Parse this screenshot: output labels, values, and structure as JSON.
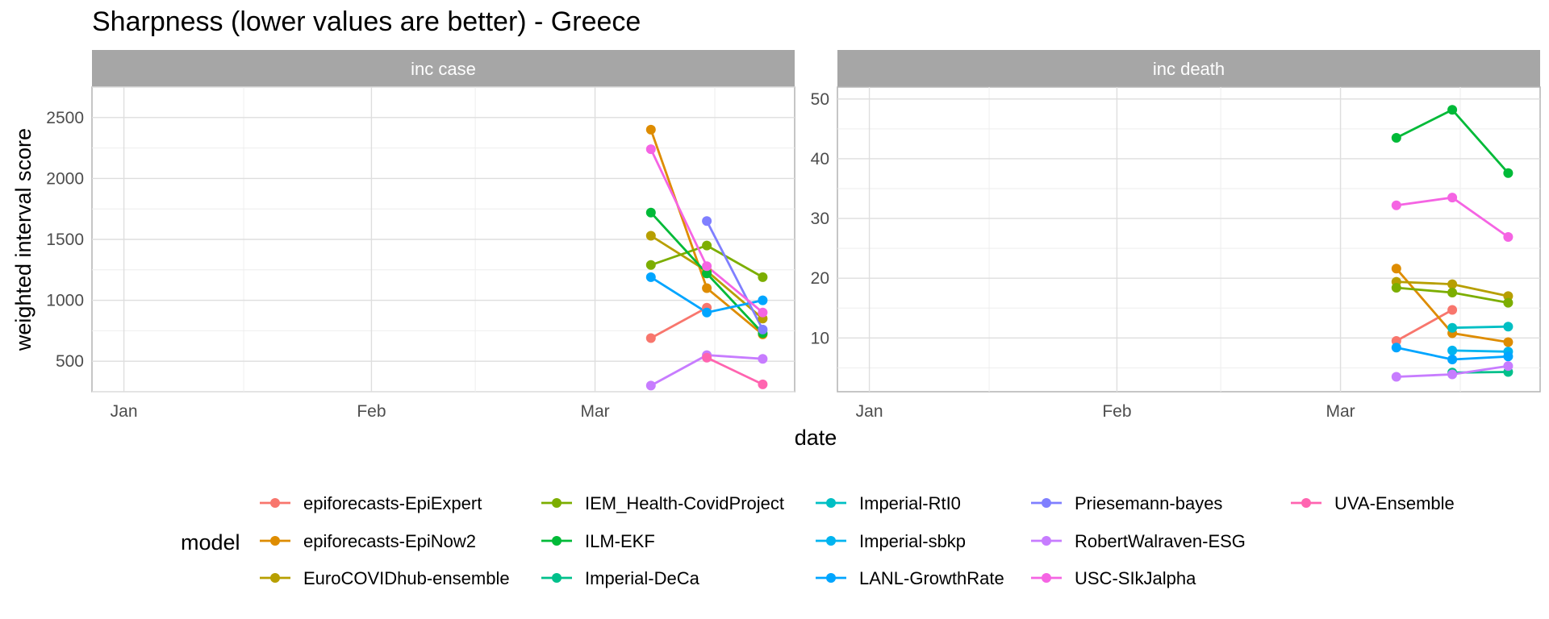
{
  "chart_data": {
    "type": "line",
    "title": "Sharpness (lower values are better) - Greece",
    "xlabel": "date",
    "ylabel": "weighted interval score",
    "x_tick_labels": [
      "Jan",
      "Feb",
      "Mar"
    ],
    "x": [
      "2021-03-08",
      "2021-03-15",
      "2021-03-22"
    ],
    "grid": true,
    "legend_position": "bottom",
    "legend_title": "model",
    "models": [
      {
        "name": "epiforecasts-EpiExpert",
        "color": "#F8766D"
      },
      {
        "name": "epiforecasts-EpiNow2",
        "color": "#DE8C00"
      },
      {
        "name": "EuroCOVIDhub-ensemble",
        "color": "#B79F00"
      },
      {
        "name": "IEM_Health-CovidProject",
        "color": "#7CAE00"
      },
      {
        "name": "ILM-EKF",
        "color": "#00BA38"
      },
      {
        "name": "Imperial-DeCa",
        "color": "#00C08B"
      },
      {
        "name": "Imperial-RtI0",
        "color": "#00BFC4"
      },
      {
        "name": "Imperial-sbkp",
        "color": "#00B4F0"
      },
      {
        "name": "LANL-GrowthRate",
        "color": "#00A5FF"
      },
      {
        "name": "Priesemann-bayes",
        "color": "#7F7FFF"
      },
      {
        "name": "RobertWalraven-ESG",
        "color": "#C77CFF"
      },
      {
        "name": "USC-SIkJalpha",
        "color": "#F564E3"
      },
      {
        "name": "UVA-Ensemble",
        "color": "#FF64B0"
      }
    ],
    "panels": [
      {
        "strip": "inc case",
        "ylim": [
          250,
          2750
        ],
        "y_ticks": [
          500,
          1000,
          1500,
          2000,
          2500
        ],
        "series": [
          {
            "name": "epiforecasts-EpiExpert",
            "values": [
              690,
              940,
              null
            ]
          },
          {
            "name": "epiforecasts-EpiNow2",
            "values": [
              2400,
              1100,
              720
            ]
          },
          {
            "name": "EuroCOVIDhub-ensemble",
            "values": [
              1530,
              1240,
              850
            ]
          },
          {
            "name": "IEM_Health-CovidProject",
            "values": [
              1290,
              1450,
              1190
            ]
          },
          {
            "name": "ILM-EKF",
            "values": [
              1720,
              1220,
              730
            ]
          },
          {
            "name": "Imperial-DeCa",
            "values": [
              null,
              null,
              null
            ]
          },
          {
            "name": "Imperial-RtI0",
            "values": [
              null,
              null,
              null
            ]
          },
          {
            "name": "Imperial-sbkp",
            "values": [
              null,
              null,
              null
            ]
          },
          {
            "name": "LANL-GrowthRate",
            "values": [
              1190,
              900,
              1000
            ]
          },
          {
            "name": "Priesemann-bayes",
            "values": [
              null,
              1650,
              760
            ]
          },
          {
            "name": "RobertWalraven-ESG",
            "values": [
              300,
              550,
              520
            ]
          },
          {
            "name": "USC-SIkJalpha",
            "values": [
              2240,
              1280,
              900
            ]
          },
          {
            "name": "UVA-Ensemble",
            "values": [
              null,
              530,
              310
            ]
          }
        ]
      },
      {
        "strip": "inc death",
        "ylim": [
          1,
          52
        ],
        "y_ticks": [
          10,
          20,
          30,
          40,
          50
        ],
        "series": [
          {
            "name": "epiforecasts-EpiExpert",
            "values": [
              9.5,
              14.7,
              null
            ]
          },
          {
            "name": "epiforecasts-EpiNow2",
            "values": [
              21.6,
              10.8,
              9.3
            ]
          },
          {
            "name": "EuroCOVIDhub-ensemble",
            "values": [
              19.4,
              19.0,
              17.0
            ]
          },
          {
            "name": "IEM_Health-CovidProject",
            "values": [
              18.4,
              17.6,
              15.9
            ]
          },
          {
            "name": "ILM-EKF",
            "values": [
              43.5,
              48.2,
              37.6
            ]
          },
          {
            "name": "Imperial-DeCa",
            "values": [
              null,
              4.2,
              4.3
            ]
          },
          {
            "name": "Imperial-RtI0",
            "values": [
              null,
              11.7,
              11.9
            ]
          },
          {
            "name": "Imperial-sbkp",
            "values": [
              null,
              7.9,
              7.7
            ]
          },
          {
            "name": "LANL-GrowthRate",
            "values": [
              8.4,
              6.4,
              6.9
            ]
          },
          {
            "name": "Priesemann-bayes",
            "values": [
              null,
              null,
              null
            ]
          },
          {
            "name": "RobertWalraven-ESG",
            "values": [
              3.5,
              3.9,
              5.3
            ]
          },
          {
            "name": "USC-SIkJalpha",
            "values": [
              32.2,
              33.5,
              26.9
            ]
          },
          {
            "name": "UVA-Ensemble",
            "values": [
              null,
              null,
              null
            ]
          }
        ]
      }
    ]
  }
}
